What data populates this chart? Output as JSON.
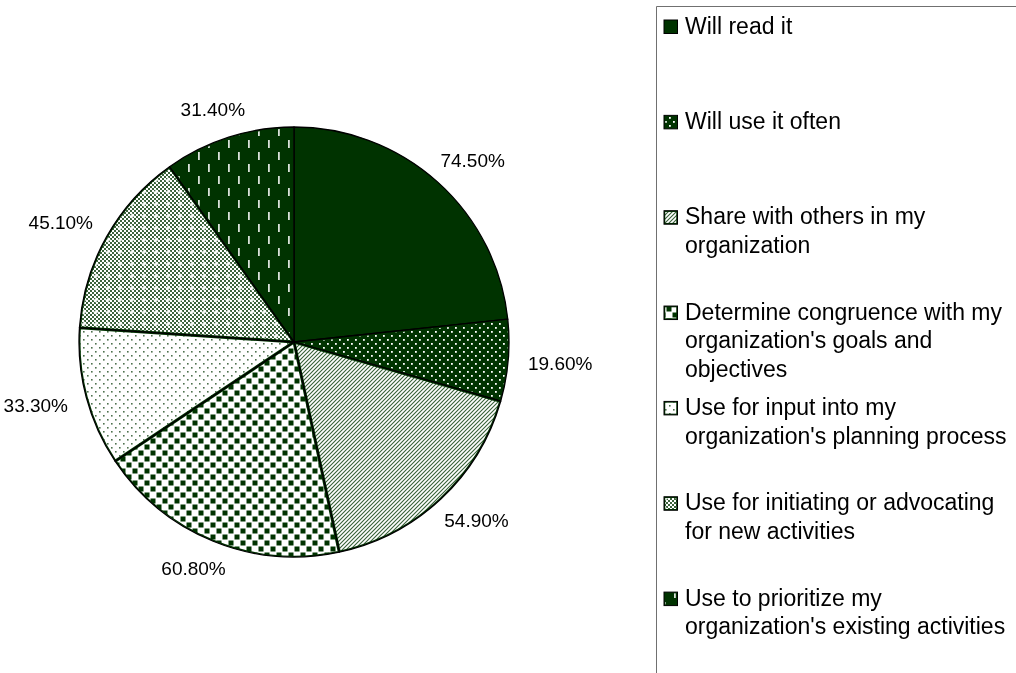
{
  "chart_data": {
    "type": "pie",
    "categories": [
      "Will read it",
      "Will use it often",
      "Share with others in my organization",
      "Determine congruence with my organization's goals and objectives",
      "Use for input into my organization's planning process",
      "Use for initiating or advocating for new activities",
      "Use to prioritize my organization's existing activities"
    ],
    "values": [
      74.5,
      19.6,
      54.9,
      60.8,
      33.3,
      45.1,
      31.4
    ],
    "colors": [
      "#003300",
      "#003300",
      "#003300",
      "#003300",
      "#003300",
      "#003300",
      "#003300"
    ],
    "value_labels": [
      "74.50%",
      "19.60%",
      "54.90%",
      "60.80%",
      "33.30%",
      "45.10%",
      "31.40%"
    ],
    "legend": "right"
  }
}
